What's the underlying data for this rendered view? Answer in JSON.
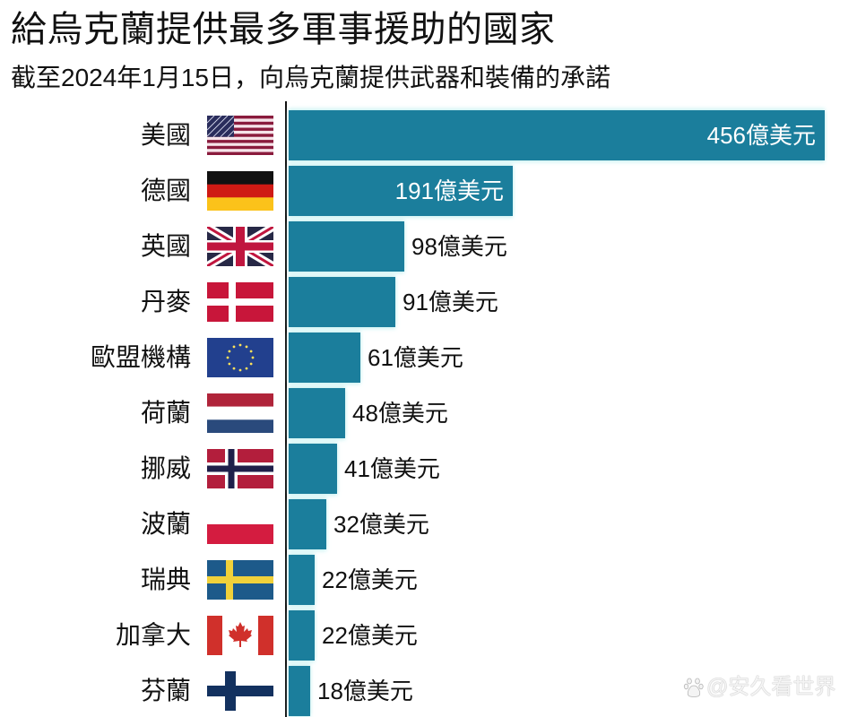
{
  "header": {
    "title": "給烏克蘭提供最多軍事援助的國家",
    "subtitle": "截至2024年1月15日，向烏克蘭提供武器和裝備的承諾"
  },
  "watermark": {
    "icon": "baidu-paw-icon",
    "text": "@安久看世界"
  },
  "colors": {
    "bar": "#1b7e9c",
    "bar_gap_glow": "#d8f4f2",
    "inside_label": "#ffffff",
    "text": "#111111"
  },
  "chart_data": {
    "type": "bar",
    "orientation": "horizontal",
    "title": "給烏克蘭提供最多軍事援助的國家",
    "subtitle": "截至2024年1月15日，向烏克蘭提供武器和裝備的承諾",
    "xlabel": "",
    "ylabel": "",
    "unit": "億美元",
    "grid": false,
    "legend": null,
    "xlim": [
      0,
      456
    ],
    "categories": [
      "美國",
      "德國",
      "英國",
      "丹麥",
      "歐盟機構",
      "荷蘭",
      "挪威",
      "波蘭",
      "瑞典",
      "加拿大",
      "芬蘭"
    ],
    "values": [
      456,
      191,
      98,
      91,
      61,
      48,
      41,
      32,
      22,
      22,
      18
    ],
    "value_labels": [
      "456億美元",
      "191億美元",
      "98億美元",
      "91億美元",
      "61億美元",
      "48億美元",
      "41億美元",
      "32億美元",
      "22億美元",
      "22億美元",
      "18億美元"
    ],
    "flags": [
      "flag-usa-icon",
      "flag-germany-icon",
      "flag-uk-icon",
      "flag-denmark-icon",
      "flag-eu-icon",
      "flag-netherlands-icon",
      "flag-norway-icon",
      "flag-poland-icon",
      "flag-sweden-icon",
      "flag-canada-icon",
      "flag-finland-icon"
    ]
  }
}
